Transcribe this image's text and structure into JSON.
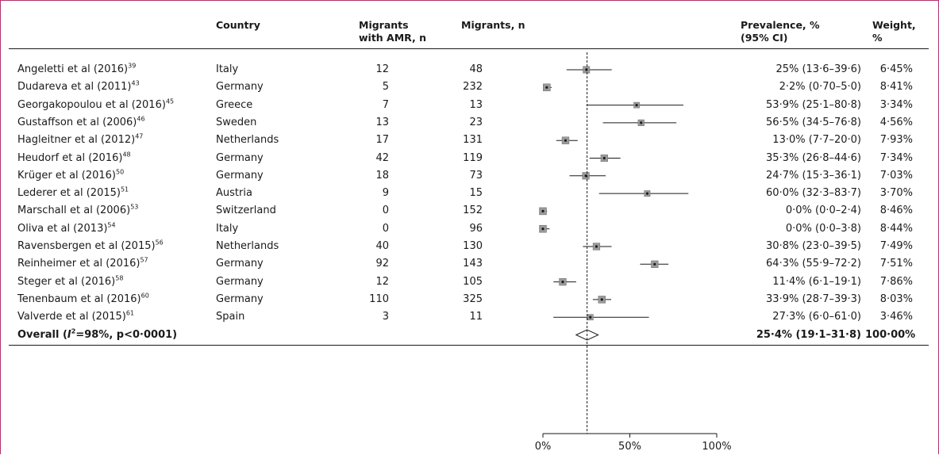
{
  "headers": {
    "country": "Country",
    "migrants_amr": [
      "Migrants",
      "with AMR, n"
    ],
    "migrants_n": "Migrants, n",
    "prevalence": [
      "Prevalence, %",
      "(95% CI)"
    ],
    "weight": [
      "Weight,",
      "%"
    ]
  },
  "chart_data": {
    "type": "forest",
    "xlim": [
      0,
      100
    ],
    "x_ticks": [
      "0%",
      "50%",
      "100%"
    ],
    "x_tick_values": [
      0,
      50,
      100
    ],
    "reference_line": 25.4,
    "studies": [
      {
        "study": "Angeletti et al (2016)",
        "ref": "39",
        "country": "Italy",
        "amr": "12",
        "n": "48",
        "est": 25.0,
        "lo": 13.6,
        "hi": 39.6,
        "prev_label": "25% (13·6–39·6)",
        "weight": "6·45%"
      },
      {
        "study": "Dudareva et al (2011)",
        "ref": "43",
        "country": "Germany",
        "amr": "5",
        "n": "232",
        "est": 2.2,
        "lo": 0.7,
        "hi": 5.0,
        "prev_label": "2·2% (0·70–5·0)",
        "weight": "8·41%"
      },
      {
        "study": "Georgakopoulou et al (2016)",
        "ref": "45",
        "country": "Greece",
        "amr": "7",
        "n": "13",
        "est": 53.9,
        "lo": 25.1,
        "hi": 80.8,
        "prev_label": "53·9% (25·1–80·8)",
        "weight": "3·34%"
      },
      {
        "study": "Gustaffson et al (2006)",
        "ref": "46",
        "country": "Sweden",
        "amr": "13",
        "n": "23",
        "est": 56.5,
        "lo": 34.5,
        "hi": 76.8,
        "prev_label": "56·5% (34·5–76·8)",
        "weight": "4·56%"
      },
      {
        "study": "Hagleitner et al (2012)",
        "ref": "47",
        "country": "Netherlands",
        "amr": "17",
        "n": "131",
        "est": 13.0,
        "lo": 7.7,
        "hi": 20.0,
        "prev_label": "13·0% (7·7–20·0)",
        "weight": "7·93%"
      },
      {
        "study": "Heudorf et al (2016)",
        "ref": "48",
        "country": "Germany",
        "amr": "42",
        "n": "119",
        "est": 35.3,
        "lo": 26.8,
        "hi": 44.6,
        "prev_label": "35·3% (26·8–44·6)",
        "weight": "7·34%"
      },
      {
        "study": "Krüger et al (2016)",
        "ref": "50",
        "country": "Germany",
        "amr": "18",
        "n": "73",
        "est": 24.7,
        "lo": 15.3,
        "hi": 36.1,
        "prev_label": "24·7% (15·3–36·1)",
        "weight": "7·03%"
      },
      {
        "study": "Lederer et al (2015)",
        "ref": "51",
        "country": "Austria",
        "amr": "9",
        "n": "15",
        "est": 60.0,
        "lo": 32.3,
        "hi": 83.7,
        "prev_label": "60·0% (32·3–83·7)",
        "weight": "3·70%"
      },
      {
        "study": "Marschall et al (2006)",
        "ref": "53",
        "country": "Switzerland",
        "amr": "0",
        "n": "152",
        "est": 0.0,
        "lo": 0.0,
        "hi": 2.4,
        "prev_label": "0·0% (0·0–2·4)",
        "weight": "8·46%"
      },
      {
        "study": "Oliva et al (2013)",
        "ref": "54",
        "country": "Italy",
        "amr": "0",
        "n": "96",
        "est": 0.0,
        "lo": 0.0,
        "hi": 3.8,
        "prev_label": "0·0% (0·0–3·8)",
        "weight": "8·44%"
      },
      {
        "study": "Ravensbergen et al (2015)",
        "ref": "56",
        "country": "Netherlands",
        "amr": "40",
        "n": "130",
        "est": 30.8,
        "lo": 23.0,
        "hi": 39.5,
        "prev_label": "30·8% (23·0–39·5)",
        "weight": "7·49%"
      },
      {
        "study": "Reinheimer et al (2016)",
        "ref": "57",
        "country": "Germany",
        "amr": "92",
        "n": "143",
        "est": 64.3,
        "lo": 55.9,
        "hi": 72.2,
        "prev_label": "64·3% (55·9–72·2)",
        "weight": "7·51%"
      },
      {
        "study": "Steger et al (2016)",
        "ref": "58",
        "country": "Germany",
        "amr": "12",
        "n": "105",
        "est": 11.4,
        "lo": 6.1,
        "hi": 19.1,
        "prev_label": "11·4% (6·1–19·1)",
        "weight": "7·86%"
      },
      {
        "study": "Tenenbaum et al (2016)",
        "ref": "60",
        "country": "Germany",
        "amr": "110",
        "n": "325",
        "est": 33.9,
        "lo": 28.7,
        "hi": 39.3,
        "prev_label": "33·9% (28·7–39·3)",
        "weight": "8·03%"
      },
      {
        "study": "Valverde et al (2015)",
        "ref": "61",
        "country": "Spain",
        "amr": "3",
        "n": "11",
        "est": 27.3,
        "lo": 6.0,
        "hi": 61.0,
        "prev_label": "27·3% (6·0–61·0)",
        "weight": "3·46%"
      }
    ],
    "overall": {
      "label_prefix": "Overall (",
      "i2_symbol": "I",
      "i2_sup": "2",
      "label_suffix": "=98%, p<0·0001)",
      "est": 25.4,
      "lo": 19.1,
      "hi": 31.8,
      "prev_label": "25·4% (19·1–31·8)",
      "weight": "100·00%"
    }
  }
}
